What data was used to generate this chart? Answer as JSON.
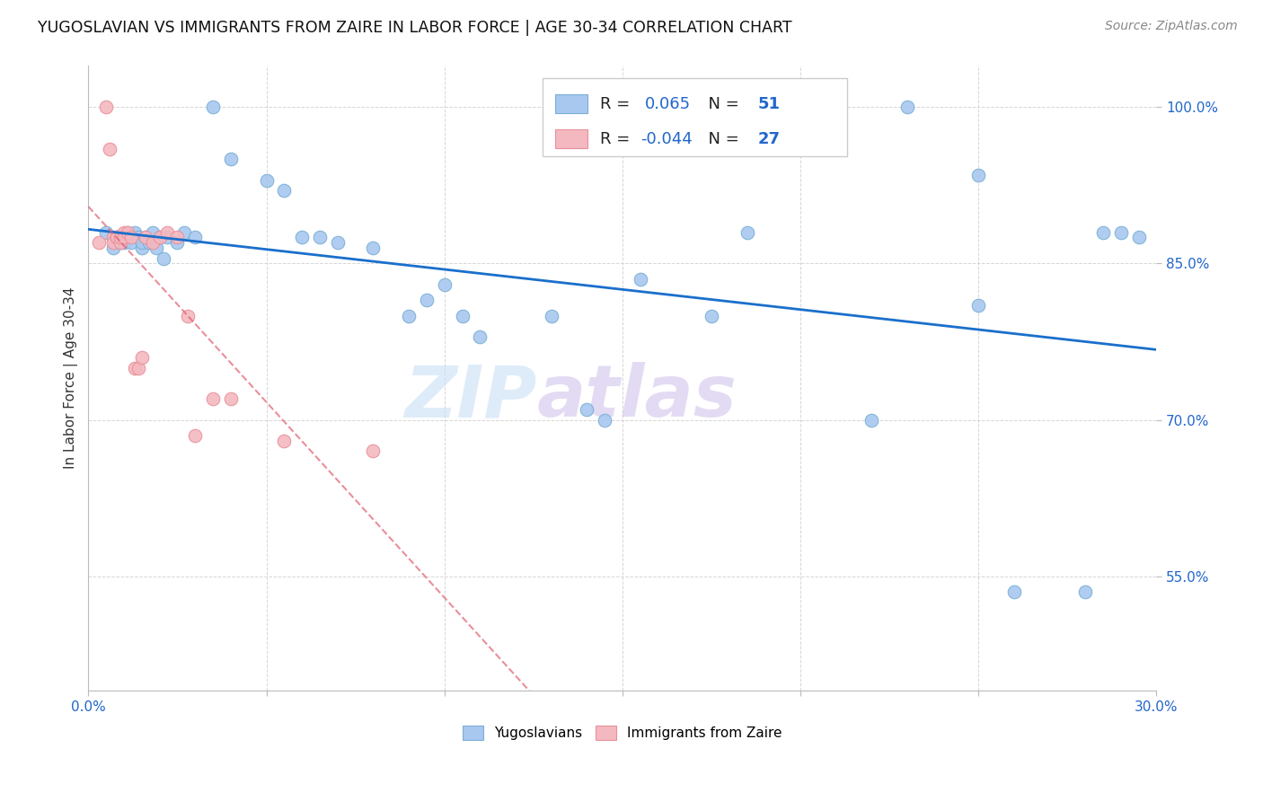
{
  "title": "YUGOSLAVIAN VS IMMIGRANTS FROM ZAIRE IN LABOR FORCE | AGE 30-34 CORRELATION CHART",
  "source": "Source: ZipAtlas.com",
  "ylabel": "In Labor Force | Age 30-34",
  "x_min": 0.0,
  "x_max": 0.3,
  "y_min": 0.44,
  "y_max": 1.04,
  "x_ticks": [
    0.0,
    0.05,
    0.1,
    0.15,
    0.2,
    0.25,
    0.3
  ],
  "x_tick_labels": [
    "0.0%",
    "",
    "",
    "",
    "",
    "",
    "30.0%"
  ],
  "y_ticks": [
    0.55,
    0.7,
    0.85,
    1.0
  ],
  "y_tick_labels": [
    "55.0%",
    "70.0%",
    "85.0%",
    "100.0%"
  ],
  "watermark_zip": "ZIP",
  "watermark_atlas": "atlas",
  "blue_color": "#a8c8f0",
  "blue_edge": "#7aafd4",
  "pink_color": "#f4b8c0",
  "pink_edge": "#e8909a",
  "trend_blue": "#1a6fcc",
  "trend_pink": "#e06070",
  "r_value_color": "#2266cc",
  "text_color": "#333333",
  "source_color": "#888888",
  "grid_color": "#cccccc",
  "yugoslavian_x": [
    0.005,
    0.007,
    0.008,
    0.009,
    0.01,
    0.01,
    0.011,
    0.012,
    0.012,
    0.013,
    0.014,
    0.015,
    0.015,
    0.016,
    0.017,
    0.018,
    0.019,
    0.02,
    0.021,
    0.022,
    0.025,
    0.027,
    0.03,
    0.035,
    0.04,
    0.05,
    0.055,
    0.06,
    0.065,
    0.07,
    0.08,
    0.09,
    0.095,
    0.1,
    0.105,
    0.11,
    0.13,
    0.14,
    0.145,
    0.155,
    0.175,
    0.185,
    0.22,
    0.23,
    0.25,
    0.26,
    0.28,
    0.285,
    0.29,
    0.295,
    0.25
  ],
  "yugoslavian_y": [
    0.88,
    0.865,
    0.875,
    0.87,
    0.87,
    0.875,
    0.88,
    0.875,
    0.87,
    0.88,
    0.875,
    0.865,
    0.87,
    0.875,
    0.87,
    0.88,
    0.865,
    0.875,
    0.855,
    0.875,
    0.87,
    0.88,
    0.875,
    1.0,
    0.95,
    0.93,
    0.92,
    0.875,
    0.875,
    0.87,
    0.865,
    0.8,
    0.815,
    0.83,
    0.8,
    0.78,
    0.8,
    0.71,
    0.7,
    0.835,
    0.8,
    0.88,
    0.7,
    1.0,
    0.81,
    0.535,
    0.535,
    0.88,
    0.88,
    0.875,
    0.935
  ],
  "zaire_x": [
    0.003,
    0.005,
    0.006,
    0.007,
    0.007,
    0.008,
    0.008,
    0.009,
    0.009,
    0.01,
    0.01,
    0.011,
    0.012,
    0.013,
    0.014,
    0.015,
    0.016,
    0.018,
    0.02,
    0.022,
    0.025,
    0.028,
    0.03,
    0.035,
    0.04,
    0.055,
    0.08
  ],
  "zaire_y": [
    0.87,
    1.0,
    0.96,
    0.875,
    0.87,
    0.875,
    0.875,
    0.87,
    0.875,
    0.88,
    0.875,
    0.88,
    0.875,
    0.75,
    0.75,
    0.76,
    0.875,
    0.87,
    0.875,
    0.88,
    0.875,
    0.8,
    0.685,
    0.72,
    0.72,
    0.68,
    0.67
  ]
}
